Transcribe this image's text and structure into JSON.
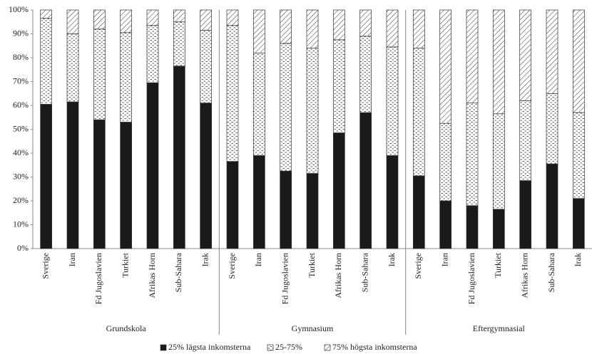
{
  "chart_data": {
    "type": "stacked_bar",
    "categories": [
      "Sverige",
      "Iran",
      "Fd Jugoslavien",
      "Turkiet",
      "Afrikas Horn",
      "Sub-Sahara",
      "Irak",
      "Sverige",
      "Iran",
      "Fd Jugoslavien",
      "Turkiet",
      "Afrikas Horn",
      "Sub-Sahara",
      "Irak",
      "Sverige",
      "Iran",
      "Fd Jugoslavien",
      "Turkiet",
      "Afrikas Horn",
      "Sub-Sahara",
      "Irak"
    ],
    "category_groups": [
      "Grundskola",
      "Gymnasium",
      "Eftergymnasial"
    ],
    "series": [
      {
        "name": "25% lägsta inkomsterna",
        "color": "#1a1a1a",
        "pattern": "solid",
        "values": [
          60.5,
          61.5,
          54,
          53,
          69.5,
          76.5,
          61,
          36.5,
          39,
          32.5,
          31.5,
          48.5,
          57,
          39,
          30.5,
          20,
          18,
          16.5,
          28.5,
          35.5,
          21
        ]
      },
      {
        "name": "25-75%",
        "color": "#1a1a1a",
        "pattern": "dashes",
        "values": [
          36,
          28.5,
          38,
          37.5,
          24,
          18.5,
          30.5,
          57,
          43,
          53.5,
          52.5,
          39,
          32,
          45.5,
          53.5,
          32.5,
          43,
          40,
          33.5,
          29.5,
          36
        ]
      },
      {
        "name": "75% högsta inkomsterna",
        "color": "#1a1a1a",
        "pattern": "hatch",
        "values": [
          3.5,
          10,
          8,
          9.5,
          6.5,
          5,
          8.5,
          6.5,
          18,
          14,
          16,
          12.5,
          11,
          15.5,
          16,
          47.5,
          39,
          43.5,
          38,
          35,
          43
        ]
      }
    ],
    "ylim": [
      0,
      100
    ],
    "yticks": [
      {
        "value": 0,
        "label": "0%"
      },
      {
        "value": 10,
        "label": "10%"
      },
      {
        "value": 20,
        "label": "20%"
      },
      {
        "value": 30,
        "label": "30%"
      },
      {
        "value": 40,
        "label": "40%"
      },
      {
        "value": 50,
        "label": "50%"
      },
      {
        "value": 60,
        "label": "60%"
      },
      {
        "value": 70,
        "label": "70%"
      },
      {
        "value": 80,
        "label": "80%"
      },
      {
        "value": 90,
        "label": "90%"
      },
      {
        "value": 100,
        "label": "100%"
      }
    ],
    "legend": "bottom"
  }
}
